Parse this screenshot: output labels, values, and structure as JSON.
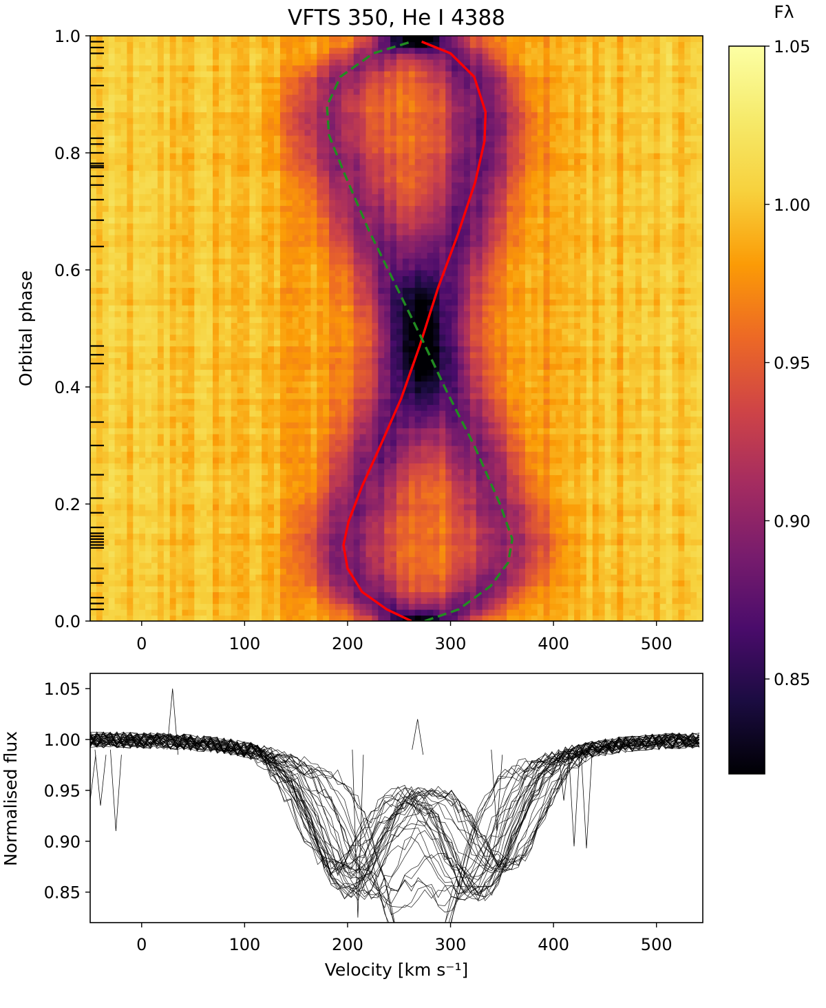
{
  "chart_data": [
    {
      "type": "heatmap",
      "title": "VFTS 350, He I 4388",
      "xlabel": "",
      "ylabel": "Orbital phase",
      "xlim": [
        -50,
        545
      ],
      "ylim": [
        0.0,
        1.0
      ],
      "xticks": [
        0,
        100,
        200,
        300,
        400,
        500
      ],
      "xtick_labels": [
        "0",
        "100",
        "200",
        "300",
        "400",
        "500"
      ],
      "yticks": [
        0.0,
        0.2,
        0.4,
        0.6,
        0.8,
        1.0
      ],
      "ytick_labels": [
        "0.0",
        "0.2",
        "0.4",
        "0.6",
        "0.8",
        "1.0"
      ],
      "colormap": "inferno",
      "colorbar": {
        "label": "Fλ",
        "range": [
          0.82,
          1.05
        ],
        "ticks": [
          0.85,
          0.9,
          0.95,
          1.0,
          1.05
        ],
        "tick_labels": [
          "0.85",
          "0.90",
          "0.95",
          "1.00",
          "1.05"
        ]
      },
      "observed_phases": [
        0.02,
        0.03,
        0.04,
        0.065,
        0.09,
        0.125,
        0.13,
        0.135,
        0.14,
        0.145,
        0.15,
        0.16,
        0.185,
        0.21,
        0.25,
        0.3,
        0.34,
        0.44,
        0.455,
        0.47,
        0.64,
        0.685,
        0.72,
        0.745,
        0.76,
        0.775,
        0.778,
        0.782,
        0.8,
        0.815,
        0.825,
        0.855,
        0.87,
        0.875,
        0.915,
        0.945,
        0.97,
        0.98,
        0.99
      ],
      "line_center_primary_kms": 268,
      "line_center_secondary_kms": 268,
      "series": [
        {
          "color": "#ff0000",
          "linestyle": "solid",
          "points": [
            [
              262,
              0.0
            ],
            [
              238,
              0.02
            ],
            [
              214,
              0.05
            ],
            [
              200,
              0.09
            ],
            [
              196,
              0.13
            ],
            [
              201,
              0.17
            ],
            [
              214,
              0.23
            ],
            [
              232,
              0.3
            ],
            [
              252,
              0.38
            ],
            [
              270,
              0.47
            ],
            [
              288,
              0.57
            ],
            [
              307,
              0.66
            ],
            [
              324,
              0.75
            ],
            [
              333,
              0.82
            ],
            [
              334,
              0.87
            ],
            [
              323,
              0.93
            ],
            [
              300,
              0.97
            ],
            [
              272,
              0.99
            ]
          ]
        },
        {
          "color": "#228b22",
          "linestyle": "dashed",
          "points": [
            [
              275,
              0.0
            ],
            [
              308,
              0.02
            ],
            [
              339,
              0.06
            ],
            [
              356,
              0.1
            ],
            [
              360,
              0.14
            ],
            [
              348,
              0.2
            ],
            [
              323,
              0.3
            ],
            [
              297,
              0.39
            ],
            [
              270,
              0.49
            ],
            [
              245,
              0.58
            ],
            [
              220,
              0.67
            ],
            [
              198,
              0.76
            ],
            [
              182,
              0.83
            ],
            [
              180,
              0.88
            ],
            [
              193,
              0.93
            ],
            [
              225,
              0.97
            ],
            [
              262,
              0.99
            ]
          ]
        }
      ]
    },
    {
      "type": "line",
      "title": "",
      "xlabel": "Velocity [km s⁻¹]",
      "ylabel": "Normalised flux",
      "xlim": [
        -50,
        545
      ],
      "ylim": [
        0.82,
        1.065
      ],
      "xticks": [
        0,
        100,
        200,
        300,
        400,
        500
      ],
      "xtick_labels": [
        "0",
        "100",
        "200",
        "300",
        "400",
        "500"
      ],
      "yticks": [
        0.85,
        0.9,
        0.95,
        1.0,
        1.05
      ],
      "ytick_labels": [
        "0.85",
        "0.90",
        "0.95",
        "1.00",
        "1.05"
      ],
      "line_color": "#000000",
      "n_spectra": 39,
      "continuum": 1.0,
      "line_depth_primary": 0.115,
      "line_depth_secondary": 0.095,
      "line_width_kms": 30,
      "broad_wing_depth": 0.045,
      "broad_wing_width_kms": 95,
      "noise_amplitude": 0.008,
      "glitches": [
        {
          "x": -50,
          "y": 0.94
        },
        {
          "x": -40,
          "y": 0.935
        },
        {
          "x": -25,
          "y": 0.91
        },
        {
          "x": 30,
          "y": 1.05
        },
        {
          "x": 210,
          "y": 0.825
        },
        {
          "x": 268,
          "y": 1.02
        },
        {
          "x": 345,
          "y": 0.91
        },
        {
          "x": 410,
          "y": 0.94
        },
        {
          "x": 420,
          "y": 0.895
        },
        {
          "x": 432,
          "y": 0.893
        }
      ]
    }
  ]
}
